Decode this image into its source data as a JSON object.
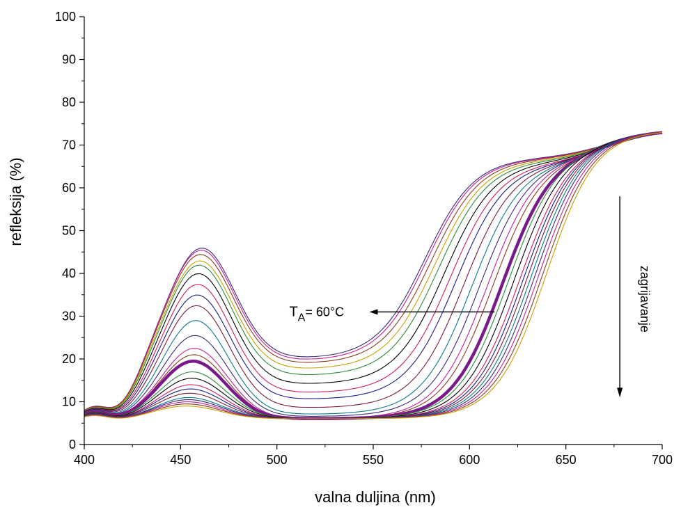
{
  "chart_data": {
    "type": "line",
    "xlabel": "valna duljina (nm)",
    "ylabel": "refleksija (%)",
    "xlim": [
      400,
      700
    ],
    "ylim": [
      0,
      100
    ],
    "xticks": [
      400,
      450,
      500,
      550,
      600,
      650,
      700
    ],
    "yticks": [
      0,
      10,
      20,
      30,
      40,
      50,
      60,
      70,
      80,
      90,
      100
    ],
    "grid": false,
    "annotations": {
      "temperature_label_main": "T",
      "temperature_label_sub": "A",
      "temperature_label_value": "= 60°C",
      "temperature_arrow": {
        "from": [
          613,
          31
        ],
        "to": [
          548,
          31
        ]
      },
      "heating_label": "zagrijavanje",
      "heating_arrow": {
        "x": 678,
        "from": 58,
        "to": 11
      }
    },
    "series_palette": [
      "#3a2a7a",
      "#c0209a",
      "#8a3a1e",
      "#c8a000",
      "#2a8a3a",
      "#000000",
      "#d01a5a",
      "#1a1a8a",
      "#7a1a3a",
      "#0a7a8a"
    ],
    "highlight_series_color": "#7a1a8a",
    "highlight_series_index": 13,
    "series_count": 24,
    "series_shape": "peak near 455–462 nm, trough near 530 nm, sigmoid rise to ~73% at 700 nm; curves shift to longer wavelength and lower peak on heating",
    "series_parameters": [
      {
        "peak": 46.0,
        "trough": 20.0,
        "plateau": 67.0,
        "mid": 577
      },
      {
        "peak": 45.5,
        "trough": 19.5,
        "plateau": 66.9,
        "mid": 578
      },
      {
        "peak": 44.5,
        "trough": 18.8,
        "plateau": 66.8,
        "mid": 580
      },
      {
        "peak": 43.0,
        "trough": 17.5,
        "plateau": 66.6,
        "mid": 582
      },
      {
        "peak": 42.0,
        "trough": 16.0,
        "plateau": 66.4,
        "mid": 584
      },
      {
        "peak": 40.0,
        "trough": 14.0,
        "plateau": 66.2,
        "mid": 587
      },
      {
        "peak": 37.5,
        "trough": 12.0,
        "plateau": 66.0,
        "mid": 590
      },
      {
        "peak": 35.0,
        "trough": 10.5,
        "plateau": 66.0,
        "mid": 593
      },
      {
        "peak": 32.5,
        "trough": 8.5,
        "plateau": 66.2,
        "mid": 597
      },
      {
        "peak": 29.0,
        "trough": 7.0,
        "plateau": 66.5,
        "mid": 601
      },
      {
        "peak": 25.5,
        "trough": 6.5,
        "plateau": 67.0,
        "mid": 605
      },
      {
        "peak": 22.5,
        "trough": 6.0,
        "plateau": 67.6,
        "mid": 609
      },
      {
        "peak": 21.0,
        "trough": 6.0,
        "plateau": 68.0,
        "mid": 612
      },
      {
        "peak": 19.5,
        "trough": 6.0,
        "plateau": 69.0,
        "mid": 617
      },
      {
        "peak": 17.0,
        "trough": 6.0,
        "plateau": 70.0,
        "mid": 620
      },
      {
        "peak": 15.5,
        "trough": 6.0,
        "plateau": 70.5,
        "mid": 623
      },
      {
        "peak": 14.0,
        "trough": 6.0,
        "plateau": 71.0,
        "mid": 626
      },
      {
        "peak": 13.0,
        "trough": 6.0,
        "plateau": 71.5,
        "mid": 628
      },
      {
        "peak": 12.0,
        "trough": 6.0,
        "plateau": 72.0,
        "mid": 630
      },
      {
        "peak": 11.0,
        "trough": 6.0,
        "plateau": 72.5,
        "mid": 632
      },
      {
        "peak": 10.5,
        "trough": 6.0,
        "plateau": 73.0,
        "mid": 634
      },
      {
        "peak": 10.0,
        "trough": 6.0,
        "plateau": 73.3,
        "mid": 636
      },
      {
        "peak": 9.5,
        "trough": 6.0,
        "plateau": 73.6,
        "mid": 638
      },
      {
        "peak": 9.0,
        "trough": 6.0,
        "plateau": 74.0,
        "mid": 640
      }
    ]
  }
}
